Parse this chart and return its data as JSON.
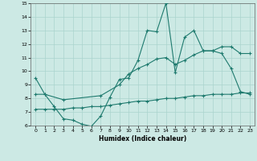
{
  "title": "",
  "xlabel": "Humidex (Indice chaleur)",
  "xlim": [
    -0.5,
    23.5
  ],
  "ylim": [
    6,
    15
  ],
  "xticks": [
    0,
    1,
    2,
    3,
    4,
    5,
    6,
    7,
    8,
    9,
    10,
    11,
    12,
    13,
    14,
    15,
    16,
    17,
    18,
    19,
    20,
    21,
    22,
    23
  ],
  "yticks": [
    6,
    7,
    8,
    9,
    10,
    11,
    12,
    13,
    14,
    15
  ],
  "bg_color": "#cce9e4",
  "line_color": "#1e7a6e",
  "grid_color": "#aad4ce",
  "line1_x": [
    0,
    1,
    2,
    3,
    4,
    5,
    6,
    7,
    8,
    9,
    10,
    11,
    12,
    13,
    14,
    15,
    16,
    17,
    18,
    19,
    20,
    21,
    22,
    23
  ],
  "line1_y": [
    9.5,
    8.3,
    7.4,
    6.5,
    6.4,
    6.1,
    5.95,
    6.7,
    8.1,
    9.4,
    9.5,
    10.8,
    13.0,
    12.9,
    15.0,
    9.9,
    12.5,
    13.0,
    11.5,
    11.5,
    11.3,
    10.2,
    8.5,
    8.3
  ],
  "line2_x": [
    0,
    1,
    3,
    7,
    9,
    10,
    11,
    12,
    13,
    14,
    15,
    16,
    17,
    18,
    19,
    20,
    21,
    22,
    23
  ],
  "line2_y": [
    8.3,
    8.3,
    7.9,
    8.2,
    9.0,
    9.8,
    10.2,
    10.5,
    10.9,
    11.0,
    10.5,
    10.8,
    11.2,
    11.5,
    11.5,
    11.8,
    11.8,
    11.3,
    11.3
  ],
  "line3_x": [
    0,
    1,
    2,
    3,
    4,
    5,
    6,
    7,
    8,
    9,
    10,
    11,
    12,
    13,
    14,
    15,
    16,
    17,
    18,
    19,
    20,
    21,
    22,
    23
  ],
  "line3_y": [
    7.2,
    7.2,
    7.2,
    7.2,
    7.3,
    7.3,
    7.4,
    7.4,
    7.5,
    7.6,
    7.7,
    7.8,
    7.8,
    7.9,
    8.0,
    8.0,
    8.1,
    8.2,
    8.2,
    8.3,
    8.3,
    8.3,
    8.4,
    8.4
  ],
  "xlabel_fontsize": 5.5,
  "tick_fontsize": 4.5,
  "linewidth": 0.8,
  "marker_size": 3
}
